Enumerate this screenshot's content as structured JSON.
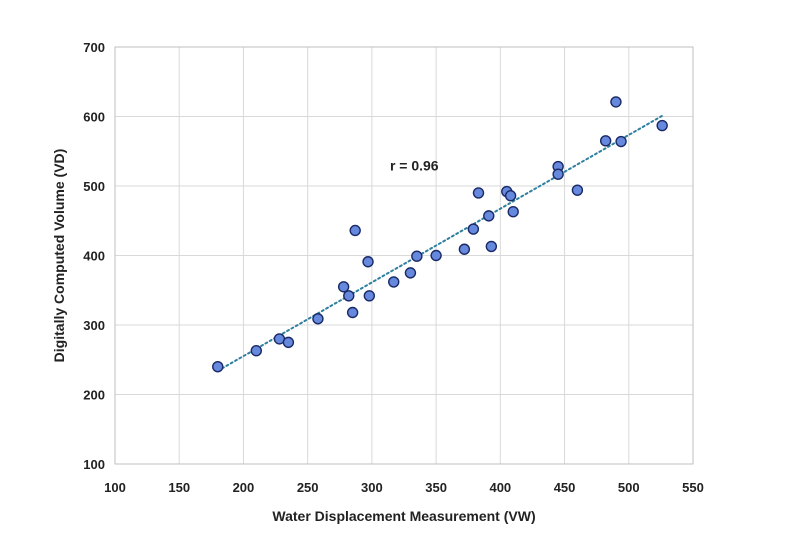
{
  "chart_data": {
    "type": "scatter",
    "title": "",
    "xlabel": "Water Displacement Measurement (VW)",
    "ylabel": "Digitally Computed Volume (VD)",
    "xlim": [
      100,
      550
    ],
    "ylim": [
      100,
      700
    ],
    "xticks": [
      100,
      150,
      200,
      250,
      300,
      350,
      400,
      450,
      500,
      550
    ],
    "yticks": [
      100,
      200,
      300,
      400,
      500,
      600,
      700
    ],
    "grid": true,
    "marker_color": "#6688dd",
    "marker_edge_color": "#1a2a66",
    "trendline": {
      "style": "dotted",
      "color": "#2f7f9f",
      "x": [
        180,
        526
      ],
      "y": [
        234,
        601
      ]
    },
    "annotation": {
      "text": "r = 0.96",
      "x": 333,
      "y": 522
    },
    "series": [
      {
        "x": [
          180,
          210,
          228,
          235,
          258,
          278,
          282,
          285,
          287,
          297,
          298,
          317,
          330,
          335,
          350,
          372,
          379,
          383,
          391,
          393,
          405,
          408,
          410,
          445,
          445,
          460,
          482,
          490,
          494,
          526
        ],
        "y": [
          240,
          263,
          280,
          275,
          309,
          355,
          342,
          318,
          436,
          391,
          342,
          362,
          375,
          399,
          400,
          409,
          438,
          490,
          457,
          413,
          492,
          486,
          463,
          528,
          517,
          494,
          565,
          621,
          564,
          587
        ]
      }
    ]
  }
}
